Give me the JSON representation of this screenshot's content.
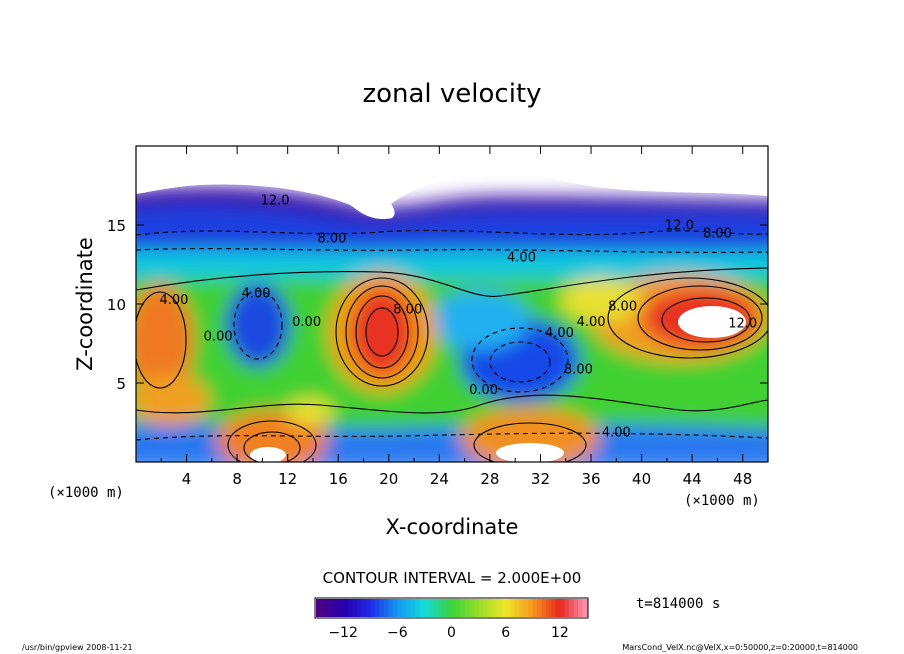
{
  "chart_data": {
    "type": "heatmap",
    "title": "zonal velocity",
    "xlabel": "X-coordinate",
    "ylabel": "Z-coordinate",
    "x_unit_label": "(×1000 m)",
    "z_unit_label": "(×1000 m)",
    "xlim": [
      0,
      50
    ],
    "ylim": [
      0,
      20
    ],
    "x_ticks": [
      "4",
      "8",
      "12",
      "16",
      "20",
      "24",
      "28",
      "32",
      "36",
      "40",
      "44",
      "48"
    ],
    "y_ticks": [
      "5",
      "10",
      "15"
    ],
    "contour_interval_text": "CONTOUR INTERVAL = 2.000E+00",
    "time_text": "t=814000 s",
    "colorbar": {
      "range": [
        -15,
        15
      ],
      "tick_labels": [
        "−12",
        "−6",
        "0",
        "6",
        "12"
      ],
      "tick_values": [
        -12,
        -6,
        0,
        6,
        12
      ]
    },
    "contour_labels": [
      {
        "text": "12.0",
        "x": 11,
        "y": 16.3
      },
      {
        "text": "8.00",
        "x": 15.5,
        "y": 13.9
      },
      {
        "text": "12.0",
        "x": 43,
        "y": 14.7
      },
      {
        "text": "8.00",
        "x": 46,
        "y": 14.2
      },
      {
        "text": "4.00",
        "x": 30.5,
        "y": 12.7
      },
      {
        "text": "4.00",
        "x": 3,
        "y": 10
      },
      {
        "text": "4.00",
        "x": 9.5,
        "y": 10.4
      },
      {
        "text": "0.00",
        "x": 6.5,
        "y": 7.7
      },
      {
        "text": "0.00",
        "x": 13.5,
        "y": 8.6
      },
      {
        "text": "8.00",
        "x": 21.5,
        "y": 9.4
      },
      {
        "text": "8.00",
        "x": 38.5,
        "y": 9.6
      },
      {
        "text": "4.00",
        "x": 36,
        "y": 8.6
      },
      {
        "text": "4.00",
        "x": 33.5,
        "y": 7.9
      },
      {
        "text": "12.0",
        "x": 48,
        "y": 8.5
      },
      {
        "text": "8.00",
        "x": 35,
        "y": 5.6
      },
      {
        "text": "0.00",
        "x": 27.5,
        "y": 4.3
      },
      {
        "text": "4.00",
        "x": 38,
        "y": 1.6
      }
    ]
  },
  "footer": {
    "left": "/usr/bin/gpview  2008-11-21",
    "right": "MarsCond_VelX.nc@VelX,x=0:50000,z=0:20000,t=814000"
  }
}
